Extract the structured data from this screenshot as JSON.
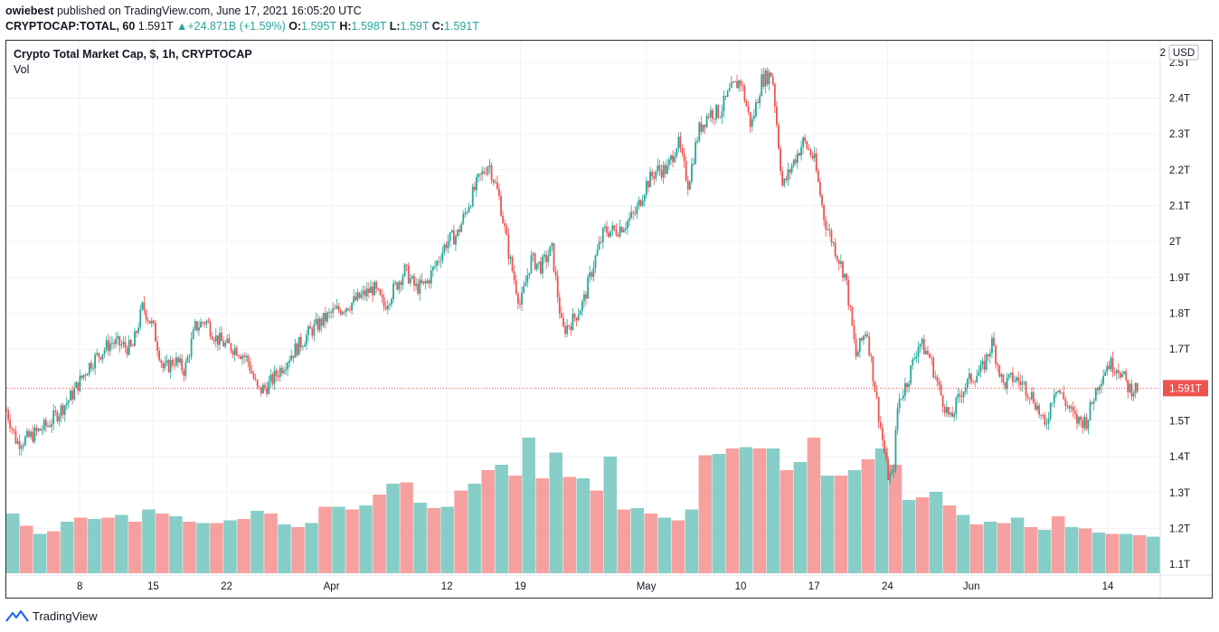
{
  "header": {
    "publisher": "owiebest",
    "published_text": "published on TradingView.com, June 17, 2021 16:05:20 UTC",
    "symbol": "CRYPTOCAP:TOTAL, 60",
    "last": "1.591T",
    "change": "+24.871B (+1.59%)",
    "o_label": "O:",
    "o": "1.595T",
    "h_label": "H:",
    "h": "1.598T",
    "l_label": "L:",
    "l": "1.59T",
    "c_label": "C:",
    "c": "1.591T",
    "up_arrow": "▲"
  },
  "legend": {
    "title": "Crypto Total Market Cap, $, 1h, CRYPTOCAP",
    "vol": "Vol"
  },
  "currency_label": "USD",
  "footer": {
    "brand": "TradingView",
    "logo_icon": "tradingview-logo-icon"
  },
  "colors": {
    "up": "#26a69a",
    "down": "#ef5350",
    "price_line": "#ef5350",
    "price_tag": "#ef5350"
  },
  "chart_data": {
    "type": "candlestick",
    "title": "Crypto Total Market Cap, $, 1h, CRYPTOCAP",
    "ylim": [
      1.07,
      2.56
    ],
    "y_ticks": [
      "2.5T",
      "2.4T",
      "2.3T",
      "2.2T",
      "2.1T",
      "2T",
      "1.9T",
      "1.8T",
      "1.7T",
      "1.6T",
      "1.5T",
      "1.4T",
      "1.3T",
      "1.2T",
      "1.1T"
    ],
    "y_tick_values": [
      2.5,
      2.4,
      2.3,
      2.2,
      2.1,
      2.0,
      1.9,
      1.8,
      1.7,
      1.6,
      1.5,
      1.4,
      1.3,
      1.2,
      1.1
    ],
    "x_ticks": [
      "8",
      "15",
      "22",
      "Apr",
      "12",
      "19",
      "May",
      "10",
      "17",
      "24",
      "Jun",
      "14"
    ],
    "x_tick_days": [
      7,
      14,
      21,
      31,
      42,
      49,
      61,
      70,
      77,
      84,
      92,
      105
    ],
    "x_range_days": [
      0,
      110
    ],
    "last_price": 1.591,
    "last_price_label": "1.591T",
    "price_path": [
      {
        "day": 0,
        "v": 1.53
      },
      {
        "day": 1,
        "v": 1.44
      },
      {
        "day": 2,
        "v": 1.45
      },
      {
        "day": 4,
        "v": 1.49
      },
      {
        "day": 6,
        "v": 1.56
      },
      {
        "day": 8,
        "v": 1.66
      },
      {
        "day": 10,
        "v": 1.72
      },
      {
        "day": 12,
        "v": 1.7
      },
      {
        "day": 13,
        "v": 1.82
      },
      {
        "day": 14,
        "v": 1.76
      },
      {
        "day": 15,
        "v": 1.64
      },
      {
        "day": 16,
        "v": 1.67
      },
      {
        "day": 17,
        "v": 1.64
      },
      {
        "day": 18,
        "v": 1.76
      },
      {
        "day": 19,
        "v": 1.78
      },
      {
        "day": 20,
        "v": 1.73
      },
      {
        "day": 21,
        "v": 1.71
      },
      {
        "day": 22,
        "v": 1.7
      },
      {
        "day": 23,
        "v": 1.67
      },
      {
        "day": 24,
        "v": 1.58
      },
      {
        "day": 25,
        "v": 1.6
      },
      {
        "day": 27,
        "v": 1.68
      },
      {
        "day": 29,
        "v": 1.75
      },
      {
        "day": 31,
        "v": 1.8
      },
      {
        "day": 33,
        "v": 1.83
      },
      {
        "day": 35,
        "v": 1.87
      },
      {
        "day": 36,
        "v": 1.82
      },
      {
        "day": 38,
        "v": 1.92
      },
      {
        "day": 39,
        "v": 1.87
      },
      {
        "day": 40,
        "v": 1.88
      },
      {
        "day": 42,
        "v": 2.0
      },
      {
        "day": 43,
        "v": 2.02
      },
      {
        "day": 44,
        "v": 2.1
      },
      {
        "day": 45,
        "v": 2.17
      },
      {
        "day": 46,
        "v": 2.22
      },
      {
        "day": 47,
        "v": 2.12
      },
      {
        "day": 48,
        "v": 1.95
      },
      {
        "day": 49,
        "v": 1.82
      },
      {
        "day": 50,
        "v": 1.95
      },
      {
        "day": 51,
        "v": 1.93
      },
      {
        "day": 52,
        "v": 1.98
      },
      {
        "day": 53,
        "v": 1.75
      },
      {
        "day": 54,
        "v": 1.78
      },
      {
        "day": 55,
        "v": 1.83
      },
      {
        "day": 56,
        "v": 1.94
      },
      {
        "day": 57,
        "v": 2.03
      },
      {
        "day": 58,
        "v": 2.03
      },
      {
        "day": 59,
        "v": 2.05
      },
      {
        "day": 60,
        "v": 2.08
      },
      {
        "day": 61,
        "v": 2.16
      },
      {
        "day": 62,
        "v": 2.2
      },
      {
        "day": 63,
        "v": 2.2
      },
      {
        "day": 64,
        "v": 2.28
      },
      {
        "day": 65,
        "v": 2.16
      },
      {
        "day": 66,
        "v": 2.31
      },
      {
        "day": 67,
        "v": 2.36
      },
      {
        "day": 68,
        "v": 2.36
      },
      {
        "day": 69,
        "v": 2.42
      },
      {
        "day": 70,
        "v": 2.45
      },
      {
        "day": 71,
        "v": 2.32
      },
      {
        "day": 72,
        "v": 2.45
      },
      {
        "day": 73,
        "v": 2.47
      },
      {
        "day": 74,
        "v": 2.15
      },
      {
        "day": 75,
        "v": 2.22
      },
      {
        "day": 76,
        "v": 2.28
      },
      {
        "day": 77,
        "v": 2.23
      },
      {
        "day": 78,
        "v": 2.06
      },
      {
        "day": 79,
        "v": 1.98
      },
      {
        "day": 80,
        "v": 1.9
      },
      {
        "day": 81,
        "v": 1.68
      },
      {
        "day": 82,
        "v": 1.76
      },
      {
        "day": 83,
        "v": 1.55
      },
      {
        "day": 84,
        "v": 1.35
      },
      {
        "day": 84.5,
        "v": 1.34
      },
      {
        "day": 85,
        "v": 1.55
      },
      {
        "day": 86,
        "v": 1.62
      },
      {
        "day": 87,
        "v": 1.72
      },
      {
        "day": 88,
        "v": 1.68
      },
      {
        "day": 89,
        "v": 1.58
      },
      {
        "day": 90,
        "v": 1.5
      },
      {
        "day": 91,
        "v": 1.58
      },
      {
        "day": 92,
        "v": 1.62
      },
      {
        "day": 93,
        "v": 1.64
      },
      {
        "day": 94,
        "v": 1.72
      },
      {
        "day": 95,
        "v": 1.6
      },
      {
        "day": 96,
        "v": 1.62
      },
      {
        "day": 97,
        "v": 1.6
      },
      {
        "day": 98,
        "v": 1.56
      },
      {
        "day": 99,
        "v": 1.48
      },
      {
        "day": 100,
        "v": 1.6
      },
      {
        "day": 101,
        "v": 1.55
      },
      {
        "day": 102,
        "v": 1.5
      },
      {
        "day": 103,
        "v": 1.5
      },
      {
        "day": 104,
        "v": 1.6
      },
      {
        "day": 105,
        "v": 1.66
      },
      {
        "day": 106,
        "v": 1.65
      },
      {
        "day": 107,
        "v": 1.59
      },
      {
        "day": 108,
        "v": 1.591
      }
    ],
    "volume_bars": [
      {
        "v": 0.44,
        "up": true
      },
      {
        "v": 0.35,
        "up": false
      },
      {
        "v": 0.29,
        "up": true
      },
      {
        "v": 0.31,
        "up": false
      },
      {
        "v": 0.38,
        "up": true
      },
      {
        "v": 0.41,
        "up": false
      },
      {
        "v": 0.4,
        "up": true
      },
      {
        "v": 0.41,
        "up": false
      },
      {
        "v": 0.43,
        "up": true
      },
      {
        "v": 0.38,
        "up": false
      },
      {
        "v": 0.47,
        "up": true
      },
      {
        "v": 0.44,
        "up": false
      },
      {
        "v": 0.42,
        "up": true
      },
      {
        "v": 0.38,
        "up": false
      },
      {
        "v": 0.37,
        "up": true
      },
      {
        "v": 0.37,
        "up": false
      },
      {
        "v": 0.39,
        "up": true
      },
      {
        "v": 0.4,
        "up": false
      },
      {
        "v": 0.46,
        "up": true
      },
      {
        "v": 0.44,
        "up": false
      },
      {
        "v": 0.36,
        "up": true
      },
      {
        "v": 0.34,
        "up": false
      },
      {
        "v": 0.37,
        "up": true
      },
      {
        "v": 0.49,
        "up": false
      },
      {
        "v": 0.49,
        "up": true
      },
      {
        "v": 0.47,
        "up": false
      },
      {
        "v": 0.5,
        "up": true
      },
      {
        "v": 0.58,
        "up": false
      },
      {
        "v": 0.66,
        "up": true
      },
      {
        "v": 0.67,
        "up": false
      },
      {
        "v": 0.52,
        "up": true
      },
      {
        "v": 0.48,
        "up": false
      },
      {
        "v": 0.49,
        "up": true
      },
      {
        "v": 0.61,
        "up": false
      },
      {
        "v": 0.66,
        "up": true
      },
      {
        "v": 0.76,
        "up": false
      },
      {
        "v": 0.8,
        "up": true
      },
      {
        "v": 0.72,
        "up": false
      },
      {
        "v": 1.0,
        "up": true
      },
      {
        "v": 0.7,
        "up": false
      },
      {
        "v": 0.89,
        "up": true
      },
      {
        "v": 0.71,
        "up": false
      },
      {
        "v": 0.7,
        "up": true
      },
      {
        "v": 0.61,
        "up": false
      },
      {
        "v": 0.86,
        "up": true
      },
      {
        "v": 0.47,
        "up": false
      },
      {
        "v": 0.48,
        "up": true
      },
      {
        "v": 0.44,
        "up": false
      },
      {
        "v": 0.41,
        "up": true
      },
      {
        "v": 0.39,
        "up": false
      },
      {
        "v": 0.47,
        "up": true
      },
      {
        "v": 0.87,
        "up": false
      },
      {
        "v": 0.88,
        "up": true
      },
      {
        "v": 0.92,
        "up": false
      },
      {
        "v": 0.93,
        "up": true
      },
      {
        "v": 0.92,
        "up": false
      },
      {
        "v": 0.92,
        "up": true
      },
      {
        "v": 0.76,
        "up": false
      },
      {
        "v": 0.82,
        "up": true
      },
      {
        "v": 1.0,
        "up": false
      },
      {
        "v": 0.72,
        "up": true
      },
      {
        "v": 0.72,
        "up": false
      },
      {
        "v": 0.76,
        "up": true
      },
      {
        "v": 0.84,
        "up": false
      },
      {
        "v": 0.92,
        "up": true
      },
      {
        "v": 0.8,
        "up": false
      },
      {
        "v": 0.54,
        "up": true
      },
      {
        "v": 0.56,
        "up": false
      },
      {
        "v": 0.6,
        "up": true
      },
      {
        "v": 0.5,
        "up": false
      },
      {
        "v": 0.43,
        "up": true
      },
      {
        "v": 0.36,
        "up": false
      },
      {
        "v": 0.38,
        "up": true
      },
      {
        "v": 0.37,
        "up": false
      },
      {
        "v": 0.41,
        "up": true
      },
      {
        "v": 0.34,
        "up": false
      },
      {
        "v": 0.32,
        "up": true
      },
      {
        "v": 0.42,
        "up": false
      },
      {
        "v": 0.34,
        "up": true
      },
      {
        "v": 0.33,
        "up": false
      },
      {
        "v": 0.3,
        "up": true
      },
      {
        "v": 0.29,
        "up": false
      },
      {
        "v": 0.29,
        "up": true
      },
      {
        "v": 0.28,
        "up": false
      },
      {
        "v": 0.27,
        "up": true
      }
    ]
  }
}
